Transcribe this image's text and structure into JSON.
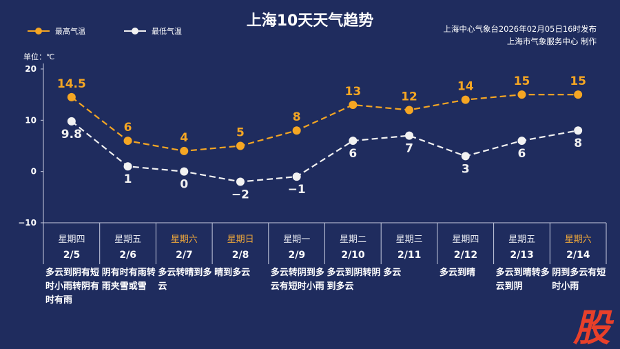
{
  "title": "上海10天天气趋势",
  "source": [
    "上海中心气象台2026年02月05日16时发布",
    "上海市气象服务中心 制作"
  ],
  "unit": "单位：℃",
  "watermark": "股",
  "colors": {
    "high": "#f5a623",
    "low": "#f2f2f2",
    "weekend": "#f0a83a"
  },
  "chart_data": {
    "type": "line",
    "title": "上海10天天气趋势",
    "ylim": [
      -10,
      20
    ],
    "yticks": [
      "20",
      "10",
      "0",
      "−10"
    ],
    "ytick_values": [
      20,
      10,
      0,
      -10
    ],
    "categories": [
      "2/5",
      "2/6",
      "2/7",
      "2/8",
      "2/9",
      "2/10",
      "2/11",
      "2/12",
      "2/13",
      "2/14"
    ],
    "weekdays": [
      "星期四",
      "星期五",
      "星期六",
      "星期日",
      "星期一",
      "星期二",
      "星期三",
      "星期四",
      "星期五",
      "星期六"
    ],
    "weekend": [
      false,
      false,
      true,
      true,
      false,
      false,
      false,
      false,
      false,
      true
    ],
    "series": [
      {
        "name": "最高气温",
        "values": [
          14.5,
          6,
          4,
          5,
          8,
          13,
          12,
          14,
          15,
          15
        ],
        "labels": [
          "14.5",
          "6",
          "4",
          "5",
          "8",
          "13",
          "12",
          "14",
          "15",
          "15"
        ]
      },
      {
        "name": "最低气温",
        "values": [
          9.8,
          1,
          0,
          -2,
          -1,
          6,
          7,
          3,
          6,
          8
        ],
        "labels": [
          "9.8",
          "1",
          "0",
          "−2",
          "−1",
          "6",
          "7",
          "3",
          "6",
          "8"
        ]
      }
    ],
    "legend": "top-left",
    "descriptions": [
      "多云到阴有短时小雨转阴有时有雨",
      "阴有时有雨转雨夹雪或雪",
      "多云转晴到多云",
      "晴到多云",
      "多云转阴到多云有短时小雨",
      "多云到阴转阴到多云",
      "多云",
      "多云到晴",
      "多云到晴转多云到阴",
      "阴到多云有短时小雨"
    ]
  }
}
